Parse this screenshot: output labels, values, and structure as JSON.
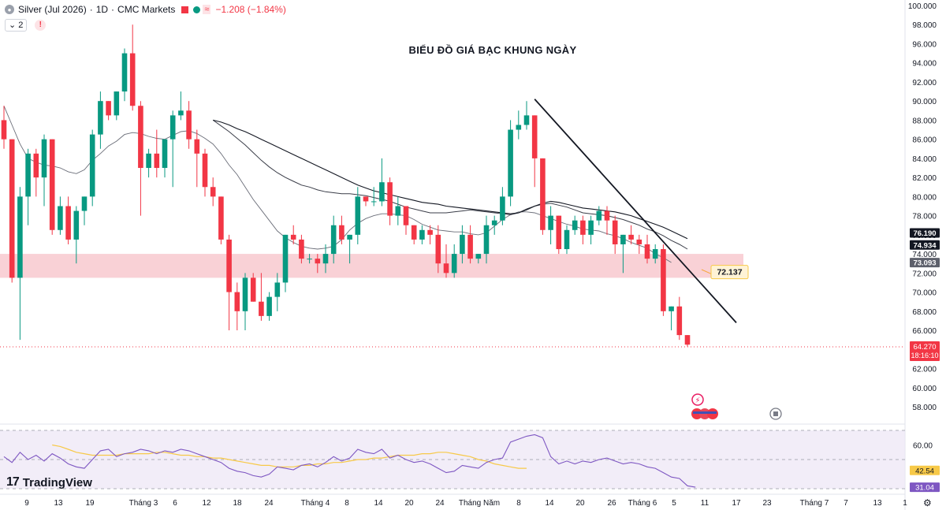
{
  "header": {
    "instrument": "Silver (Jul 2026)",
    "interval": "1D",
    "source": "CMC Markets",
    "change": "−1.208 (−1.84%)",
    "indicator_count": "2",
    "warning": "!"
  },
  "branding": {
    "logo_text": "TradingView"
  },
  "chart_data": {
    "type": "candlestick",
    "title": "BIỂU ĐỒ GIÁ BẠC KHUNG NGÀY",
    "ylim": [
      56,
      100
    ],
    "y_ticks": [
      "58.000",
      "60.000",
      "62.000",
      "64.000",
      "66.000",
      "68.000",
      "70.000",
      "72.000",
      "74.000",
      "76.000",
      "78.000",
      "80.000",
      "82.000",
      "84.000",
      "86.000",
      "88.000",
      "90.000",
      "92.000",
      "94.000",
      "96.000",
      "98.000",
      "100.000"
    ],
    "x_tick_labels": [
      "9",
      "13",
      "19",
      "Tháng 3",
      "6",
      "12",
      "18",
      "24",
      "Tháng 4",
      "8",
      "14",
      "20",
      "24",
      "Tháng Năm",
      "8",
      "14",
      "20",
      "26",
      "Tháng 6",
      "5",
      "11",
      "17",
      "23",
      "Tháng 7",
      "7",
      "13",
      "1"
    ],
    "colors": {
      "up": "#089981",
      "down": "#f23645",
      "trendline": "#131722",
      "rsi": "#7e57c2",
      "rsi_ma": "#f7c948",
      "zone": "#f8c9cf"
    },
    "candles": [
      [
        88,
        89.5,
        85,
        86
      ],
      [
        86,
        86,
        71,
        71.5
      ],
      [
        71.5,
        81,
        65,
        80
      ],
      [
        80,
        85,
        77,
        84.5
      ],
      [
        84.5,
        85,
        80,
        82
      ],
      [
        82,
        86.5,
        79,
        86
      ],
      [
        86,
        86,
        76,
        76.5
      ],
      [
        76.5,
        80,
        76,
        79
      ],
      [
        79,
        80,
        75,
        75.5
      ],
      [
        75.5,
        79,
        73,
        78.5
      ],
      [
        78.5,
        80,
        77,
        80
      ],
      [
        80,
        87,
        79,
        86.5
      ],
      [
        86.5,
        91,
        85,
        90
      ],
      [
        90,
        90,
        88,
        88.5
      ],
      [
        88.5,
        91,
        88,
        91
      ],
      [
        91,
        95.5,
        90,
        95
      ],
      [
        95,
        98,
        89,
        89.5
      ],
      [
        89.5,
        90,
        78,
        83
      ],
      [
        83,
        85,
        82,
        84.5
      ],
      [
        84.5,
        87,
        82,
        83
      ],
      [
        83,
        86,
        82,
        86
      ],
      [
        86,
        89,
        81,
        88.5
      ],
      [
        88.5,
        91,
        88,
        89
      ],
      [
        89,
        90,
        85,
        86
      ],
      [
        86,
        87,
        81,
        84.5
      ],
      [
        84.5,
        85,
        80,
        81
      ],
      [
        81,
        82,
        79,
        80
      ],
      [
        80,
        80,
        75,
        75.5
      ],
      [
        75.5,
        76,
        66,
        70
      ],
      [
        70,
        71,
        66,
        68
      ],
      [
        68,
        72,
        66,
        71.5
      ],
      [
        71.5,
        72,
        69,
        69
      ],
      [
        69,
        72,
        67,
        67.5
      ],
      [
        67.5,
        70,
        67,
        69.5
      ],
      [
        69.5,
        72,
        68,
        71
      ],
      [
        71,
        76,
        70,
        76
      ],
      [
        76,
        77,
        75,
        75.5
      ],
      [
        75.5,
        76,
        73,
        73.5
      ],
      [
        73.5,
        74,
        73,
        73.5
      ],
      [
        73.5,
        74,
        72,
        73
      ],
      [
        73,
        75,
        72,
        74
      ],
      [
        74,
        78,
        73,
        77
      ],
      [
        77,
        78,
        75,
        75.5
      ],
      [
        75.5,
        76,
        73,
        76
      ],
      [
        76,
        81,
        75,
        80
      ],
      [
        80,
        80,
        79,
        79.5
      ],
      [
        79.5,
        81,
        79,
        79.5
      ],
      [
        79.5,
        84,
        79,
        81.5
      ],
      [
        81.5,
        82,
        77,
        78
      ],
      [
        78,
        80,
        77,
        79
      ],
      [
        79,
        79,
        76,
        77
      ],
      [
        77,
        77,
        75,
        75.5
      ],
      [
        75.5,
        77,
        75,
        76.5
      ],
      [
        76.5,
        77,
        75,
        76
      ],
      [
        76,
        77,
        72,
        73
      ],
      [
        73,
        75,
        71.5,
        72
      ],
      [
        72,
        75,
        71.5,
        74
      ],
      [
        74,
        77,
        73,
        76
      ],
      [
        76,
        77,
        73,
        73.5
      ],
      [
        73.5,
        74,
        73,
        74
      ],
      [
        74,
        78,
        73,
        77
      ],
      [
        77,
        78,
        76,
        77.5
      ],
      [
        77.5,
        81,
        77,
        80
      ],
      [
        80,
        88,
        79,
        87
      ],
      [
        87,
        89,
        86,
        87.5
      ],
      [
        87.5,
        90,
        87,
        88.5
      ],
      [
        88.5,
        88.5,
        81,
        84
      ],
      [
        84,
        84,
        76,
        76.5
      ],
      [
        76.5,
        79,
        75,
        78
      ],
      [
        78,
        78,
        74,
        74.5
      ],
      [
        74.5,
        77,
        74,
        76.5
      ],
      [
        76.5,
        78,
        76,
        77.5
      ],
      [
        77.5,
        78,
        75,
        76
      ],
      [
        76,
        78,
        75,
        77.5
      ],
      [
        77.5,
        79,
        77,
        78.5
      ],
      [
        78.5,
        79,
        76,
        77.5
      ],
      [
        77.5,
        78,
        74,
        75
      ],
      [
        75,
        76,
        72,
        76
      ],
      [
        76,
        77,
        75,
        75.5
      ],
      [
        75.5,
        76,
        74,
        75
      ],
      [
        75,
        76,
        73,
        73.5
      ],
      [
        73.5,
        75,
        73,
        74.5
      ],
      [
        74.5,
        75,
        67.5,
        68
      ],
      [
        68,
        68.5,
        66,
        68.5
      ],
      [
        68.5,
        69.5,
        65,
        65.5
      ],
      [
        65.5,
        65.5,
        64.3,
        64.5
      ]
    ],
    "moving_averages": [
      {
        "values": [
          89.5,
          87.5,
          85.5,
          84,
          83.6,
          83.3,
          83.2,
          83,
          82.6,
          82.4,
          82.8,
          83.8,
          84.5,
          85.3,
          85.8,
          86.5,
          86.7,
          86.6,
          86.3,
          86.1,
          86,
          86.4,
          86.8,
          86.9,
          86.6,
          86.1,
          85.5,
          84.5,
          83.3,
          82.3,
          81,
          79.7,
          78.6,
          77.5,
          76.4,
          75.7,
          75.2,
          74.8,
          74.6,
          74.5,
          74.6,
          74.8,
          75.5,
          76.5,
          77.2,
          77.7,
          78,
          78.2,
          78.2,
          78.1,
          78,
          77.6,
          77.1,
          76.8,
          76.5,
          76.4,
          76.3,
          76.3,
          76.1,
          76,
          76.2,
          76.9,
          77.6,
          78.1,
          78.4,
          78.4,
          78.3,
          78,
          77.7,
          77.4,
          77.1,
          76.9,
          76.6,
          76.5,
          76.4,
          76.1,
          75.9,
          75.6,
          75.2,
          74.9,
          74.6,
          74,
          73.6,
          73.1
        ]
      },
      {
        "startIndex": 26,
        "values": [
          88,
          87.4,
          86.8,
          86.1,
          85.4,
          84.6,
          83.8,
          83.1,
          82.5,
          82,
          81.6,
          81.2,
          81,
          80.7,
          80.5,
          80.4,
          80.3,
          80.3,
          80.2,
          80.1,
          79.9,
          79.7,
          79.5,
          79.2,
          78.9,
          78.7,
          78.5,
          78.3,
          78.3,
          78.3,
          78.4,
          78.5,
          78.6,
          78.5,
          78.4,
          78.3,
          78.2,
          78.1,
          78.3,
          78.7,
          79,
          79.2,
          79.3,
          79.1,
          78.9,
          78.6,
          78.3,
          78.2,
          78.1,
          78,
          77.8,
          77.6,
          77.3,
          77,
          76.6,
          76.3,
          75.9,
          75.4,
          75,
          74.5
        ]
      },
      {
        "startIndex": 26,
        "values": [
          88,
          87.8,
          87.5,
          87.1,
          86.8,
          86.4,
          86,
          85.6,
          85.2,
          84.8,
          84.4,
          84,
          83.6,
          83.2,
          82.8,
          82.4,
          82,
          81.6,
          81.2,
          80.9,
          80.6,
          80.4,
          80.2,
          80,
          79.8,
          79.6,
          79.4,
          79.3,
          79.2,
          79,
          78.9,
          78.8,
          78.7,
          78.6,
          78.5,
          78.4,
          78.3,
          78.2,
          78.3,
          78.6,
          79,
          79.3,
          79.5,
          79.4,
          79.2,
          79,
          78.8,
          78.7,
          78.6,
          78.5,
          78.4,
          78.2,
          78,
          77.7,
          77.4,
          77.1,
          76.8,
          76.4,
          76,
          75.6
        ]
      }
    ],
    "trendline": {
      "start": {
        "index": 66,
        "price": 90.2
      },
      "end_price": 66.8
    },
    "price_labels": {
      "current": "64.270",
      "countdown": "18:16:10",
      "ma_values": [
        "76.190",
        "74.934",
        "73.093"
      ],
      "zone_label": "72.137"
    },
    "support_zone": [
      71.5,
      74
    ],
    "rsi": {
      "y_ticks": [
        "60.00",
        "42.54",
        "31.04"
      ],
      "values": [
        52,
        48,
        55,
        50,
        53,
        49,
        54,
        51,
        47,
        45,
        44,
        50,
        56,
        57,
        52,
        54,
        55,
        57,
        56,
        54,
        56,
        55,
        57,
        56,
        54,
        52,
        50,
        48,
        44,
        42,
        41,
        39,
        38,
        40,
        45,
        44,
        43,
        46,
        47,
        45,
        48,
        52,
        49,
        51,
        57,
        55,
        54,
        57,
        51,
        53,
        50,
        48,
        49,
        47,
        44,
        41,
        42,
        46,
        45,
        44,
        48,
        50,
        51,
        62,
        64,
        66,
        67,
        65,
        52,
        47,
        49,
        47,
        49,
        48,
        50,
        51,
        49,
        47,
        48,
        47,
        45,
        44,
        41,
        38,
        37,
        32,
        31
      ],
      "ma_values": [
        60,
        59,
        57,
        55,
        54,
        53,
        53,
        53,
        53,
        54,
        54,
        54,
        54,
        55,
        55,
        54,
        53,
        53,
        52,
        52,
        51,
        51,
        50,
        49,
        48,
        47,
        46,
        46,
        45,
        45,
        45,
        46,
        46,
        47,
        47,
        48,
        48,
        49,
        50,
        50,
        51,
        51,
        52,
        53,
        53,
        53,
        54,
        54,
        55,
        55,
        54,
        53,
        52,
        50,
        49,
        47,
        46,
        45,
        44,
        44
      ]
    }
  }
}
